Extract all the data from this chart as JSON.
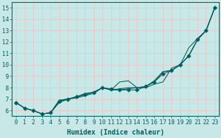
{
  "xlabel": "Humidex (Indice chaleur)",
  "ylabel": "",
  "xlim": [
    -0.5,
    23.5
  ],
  "ylim": [
    5.5,
    15.5
  ],
  "xticks": [
    0,
    1,
    2,
    3,
    4,
    5,
    6,
    7,
    8,
    9,
    10,
    11,
    12,
    13,
    14,
    15,
    16,
    17,
    18,
    19,
    20,
    21,
    22,
    23
  ],
  "yticks": [
    6,
    7,
    8,
    9,
    10,
    11,
    12,
    13,
    14,
    15
  ],
  "bg_color": "#c8e8e8",
  "grid_color": "#e8c8c8",
  "line_color": "#006060",
  "series": [
    [
      6.7,
      6.2,
      6.0,
      5.7,
      5.8,
      6.7,
      7.0,
      7.1,
      7.3,
      7.5,
      8.0,
      7.8,
      8.5,
      8.6,
      8.0,
      8.0,
      8.3,
      8.5,
      9.7,
      10.0,
      11.5,
      12.3,
      13.0,
      15.0
    ],
    [
      6.7,
      6.2,
      6.0,
      5.7,
      5.8,
      6.8,
      7.0,
      7.2,
      7.4,
      7.6,
      8.0,
      7.9,
      7.8,
      7.8,
      7.8,
      8.1,
      8.5,
      9.2,
      9.5,
      10.0,
      10.8,
      12.2,
      13.0,
      15.0
    ],
    [
      6.7,
      6.2,
      6.0,
      5.7,
      5.8,
      6.9,
      7.0,
      7.2,
      7.4,
      7.6,
      8.0,
      7.8,
      7.8,
      7.9,
      8.0,
      8.1,
      8.5,
      9.4,
      9.5,
      10.0,
      10.8,
      12.2,
      13.0,
      15.0
    ],
    [
      6.7,
      6.2,
      6.0,
      5.7,
      5.8,
      6.9,
      7.0,
      7.2,
      7.5,
      7.6,
      8.0,
      7.8,
      7.9,
      8.0,
      8.0,
      8.1,
      8.6,
      9.4,
      9.5,
      10.0,
      10.8,
      12.2,
      13.0,
      15.0
    ]
  ],
  "marker_series_idx": 1,
  "marker": "D",
  "marker_size": 2.5,
  "font_size": 6,
  "label_font_size": 7,
  "figsize": [
    3.2,
    2.0
  ],
  "dpi": 100
}
